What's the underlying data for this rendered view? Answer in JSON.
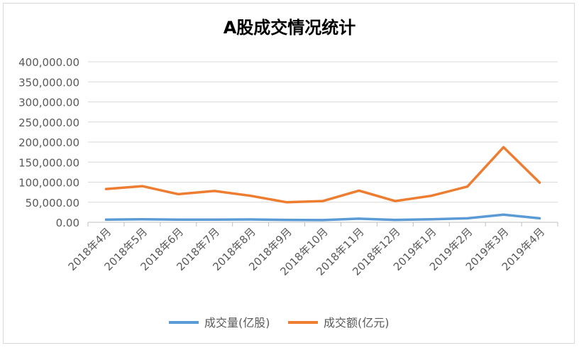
{
  "chart_data": {
    "type": "line",
    "title": "A股成交情况统计",
    "xlabel": "",
    "ylabel": "",
    "ylim": [
      0,
      400000
    ],
    "y_ticks": [
      "0.00",
      "50,000.00",
      "100,000.00",
      "150,000.00",
      "200,000.00",
      "250,000.00",
      "300,000.00",
      "350,000.00",
      "400,000.00"
    ],
    "y_tick_values": [
      0,
      50000,
      100000,
      150000,
      200000,
      250000,
      300000,
      350000,
      400000
    ],
    "categories": [
      "2018年4月",
      "2018年5月",
      "2018年6月",
      "2018年7月",
      "2018年8月",
      "2018年9月",
      "2018年10月",
      "2018年11月",
      "2018年12月",
      "2019年1月",
      "2019年2月",
      "2019年3月",
      "2019年4月"
    ],
    "series": [
      {
        "name": "成交量(亿股)",
        "color": "#5b9bd5",
        "values": [
          6500,
          7500,
          6500,
          6500,
          7000,
          6000,
          5500,
          9000,
          6000,
          7500,
          10000,
          19000,
          10000
        ]
      },
      {
        "name": "成交额(亿元)",
        "color": "#ed7d31",
        "values": [
          83000,
          90000,
          70000,
          78000,
          66000,
          50000,
          53000,
          79000,
          53000,
          66000,
          89000,
          187000,
          99000
        ]
      }
    ],
    "grid": true,
    "legend_position": "bottom"
  }
}
